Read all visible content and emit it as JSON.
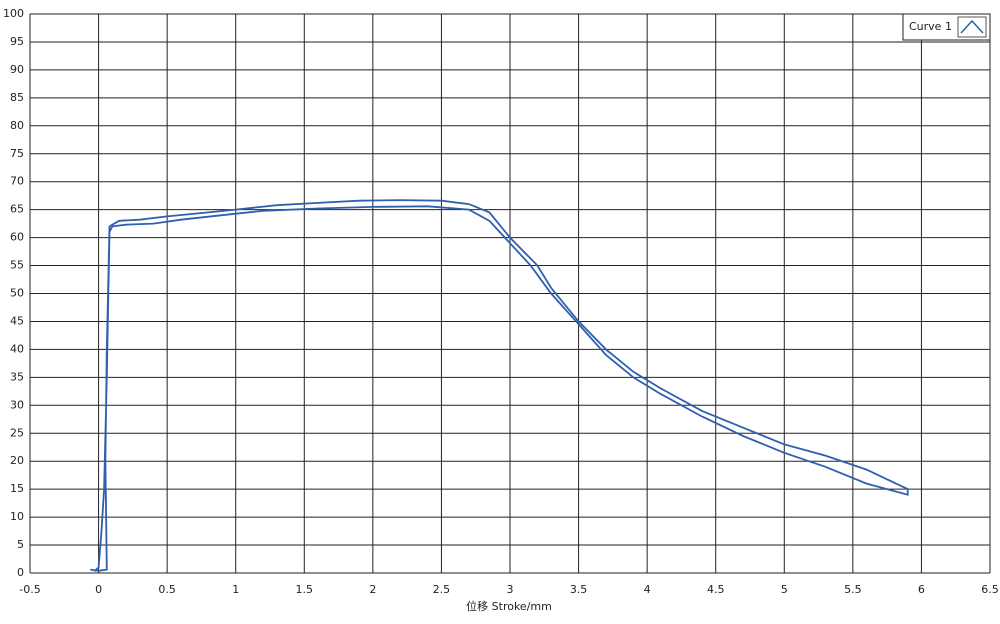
{
  "chart_data": {
    "type": "line",
    "x_label": "位移 Stroke/mm",
    "xlim": [
      -0.5,
      6.5
    ],
    "xticks": [
      -0.5,
      0,
      0.5,
      1,
      1.5,
      2,
      2.5,
      3,
      3.5,
      4,
      4.5,
      5,
      5.5,
      6,
      6.5
    ],
    "ylim": [
      0,
      100
    ],
    "yticks": [
      0,
      5,
      10,
      15,
      20,
      25,
      30,
      35,
      40,
      45,
      50,
      55,
      60,
      65,
      70,
      75,
      80,
      85,
      90,
      95,
      100
    ],
    "grid": true,
    "legend": "upper right",
    "series": [
      {
        "name": "Curve 1",
        "color": "#2f5fad",
        "x": [
          -0.06,
          0.0,
          0.03,
          0.06,
          0.05,
          0.06,
          0.08,
          0.15,
          0.3,
          0.5,
          0.8,
          1.0,
          1.3,
          1.6,
          1.9,
          2.2,
          2.5,
          2.7,
          2.85,
          3.0,
          3.2,
          3.3,
          3.5,
          3.7,
          3.9,
          4.1,
          4.4,
          4.7,
          5.0,
          5.3,
          5.6,
          5.9,
          5.9,
          5.6,
          5.3,
          5.0,
          4.7,
          4.4,
          4.1,
          3.9,
          3.7,
          3.5,
          3.3,
          3.15,
          3.0,
          2.85,
          2.7,
          2.4,
          2.0,
          1.6,
          1.2,
          0.9,
          0.6,
          0.4,
          0.2,
          0.1,
          0.08,
          0.06,
          0.04,
          0.02,
          0.0,
          -0.03
        ],
        "values": [
          0.6,
          0.4,
          0.5,
          0.6,
          20,
          40,
          62,
          63,
          63.2,
          63.8,
          64.5,
          65,
          65.8,
          66.2,
          66.6,
          66.7,
          66.6,
          66,
          64.5,
          60,
          55,
          51,
          45,
          40,
          36,
          33,
          29,
          26,
          23,
          21,
          18.5,
          15,
          14,
          16,
          19,
          21.5,
          24.5,
          28,
          32,
          35,
          39,
          44.5,
          50,
          55,
          59,
          63,
          65,
          65.6,
          65.5,
          65.2,
          64.8,
          64,
          63.2,
          62.5,
          62.3,
          62,
          61,
          35,
          15,
          7,
          1,
          0.3
        ]
      }
    ]
  }
}
